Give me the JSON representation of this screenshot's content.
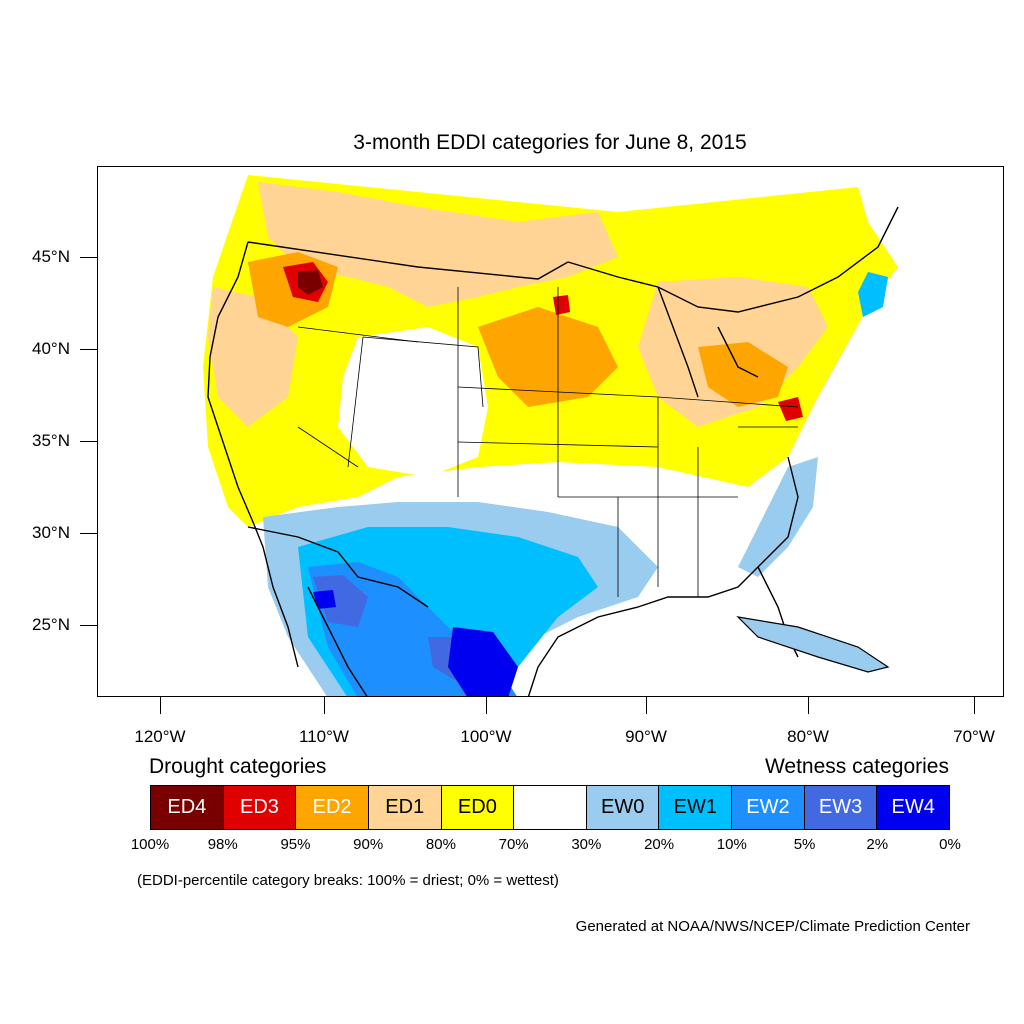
{
  "title": "3-month EDDI categories for June 8, 2015",
  "lat_labels": [
    "45°N",
    "40°N",
    "35°N",
    "30°N",
    "25°N"
  ],
  "lon_labels": [
    "120°W",
    "110°W",
    "100°W",
    "90°W",
    "80°W",
    "70°W"
  ],
  "drought_heading": "Drought categories",
  "wetness_heading": "Wetness categories",
  "categories": [
    {
      "label": "ED4",
      "color": "#7a0000",
      "text_color": "#ffffff"
    },
    {
      "label": "ED3",
      "color": "#e00000",
      "text_color": "#ffffff"
    },
    {
      "label": "ED2",
      "color": "#ffa500",
      "text_color": "#ffffff"
    },
    {
      "label": "ED1",
      "color": "#ffd495",
      "text_color": "#000000"
    },
    {
      "label": "ED0",
      "color": "#ffff00",
      "text_color": "#000000"
    },
    {
      "label": "",
      "color": "#ffffff",
      "text_color": "#000000"
    },
    {
      "label": "EW0",
      "color": "#99ccee",
      "text_color": "#000000"
    },
    {
      "label": "EW1",
      "color": "#00bfff",
      "text_color": "#000000"
    },
    {
      "label": "EW2",
      "color": "#1e8fff",
      "text_color": "#ffffff"
    },
    {
      "label": "EW3",
      "color": "#4169e1",
      "text_color": "#ffffff"
    },
    {
      "label": "EW4",
      "color": "#0000f0",
      "text_color": "#ffffff"
    }
  ],
  "breaks": [
    "100%",
    "98%",
    "95%",
    "90%",
    "80%",
    "70%",
    "30%",
    "20%",
    "10%",
    "5%",
    "2%",
    "0%"
  ],
  "note": "(EDDI-percentile category breaks: 100% = driest; 0% = wettest)",
  "credit": "Generated at NOAA/NWS/NCEP/Climate Prediction Center"
}
